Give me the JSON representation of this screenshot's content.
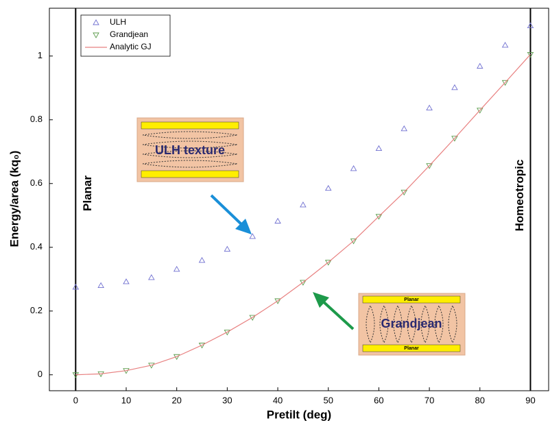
{
  "chart_data": {
    "type": "scatter",
    "x_label": "Pretilt (deg)",
    "y_label": "Energy/area (kq₀)",
    "xlim": [
      -5.2,
      93.6
    ],
    "ylim": [
      -0.05,
      1.15
    ],
    "xticks": [
      0,
      10,
      20,
      30,
      40,
      50,
      60,
      70,
      80,
      90
    ],
    "yticks": [
      0,
      0.2,
      0.4,
      0.6,
      0.8,
      1
    ],
    "x": [
      0,
      5,
      10,
      15,
      20,
      25,
      30,
      35,
      40,
      45,
      50,
      55,
      60,
      65,
      70,
      75,
      80,
      85,
      90
    ],
    "series": [
      {
        "name": "ULH",
        "color": "#6f6fd0",
        "marker": "triangle-up",
        "values": [
          0.275,
          0.28,
          0.292,
          0.305,
          0.331,
          0.359,
          0.394,
          0.434,
          0.482,
          0.533,
          0.585,
          0.647,
          0.71,
          0.772,
          0.837,
          0.901,
          0.968,
          1.034,
          1.095
        ]
      },
      {
        "name": "Grandjean",
        "color": "#5a9a4a",
        "marker": "triangle-down",
        "values": [
          0,
          0.003,
          0.013,
          0.03,
          0.057,
          0.093,
          0.134,
          0.18,
          0.232,
          0.29,
          0.353,
          0.42,
          0.497,
          0.573,
          0.656,
          0.742,
          0.83,
          0.917,
          1.005
        ]
      },
      {
        "name": "Analytic GJ",
        "color": "#e88080",
        "marker": "line",
        "values": [
          0,
          0.003,
          0.013,
          0.03,
          0.057,
          0.093,
          0.134,
          0.18,
          0.232,
          0.29,
          0.353,
          0.42,
          0.497,
          0.573,
          0.656,
          0.742,
          0.83,
          0.917,
          1.005
        ]
      }
    ],
    "vlines": [
      0,
      90
    ],
    "annotations": [
      "Planar",
      "Homeotropic",
      "ULH texture",
      "Grandjean",
      "Planar",
      "Planar"
    ],
    "legend": "upper left"
  }
}
